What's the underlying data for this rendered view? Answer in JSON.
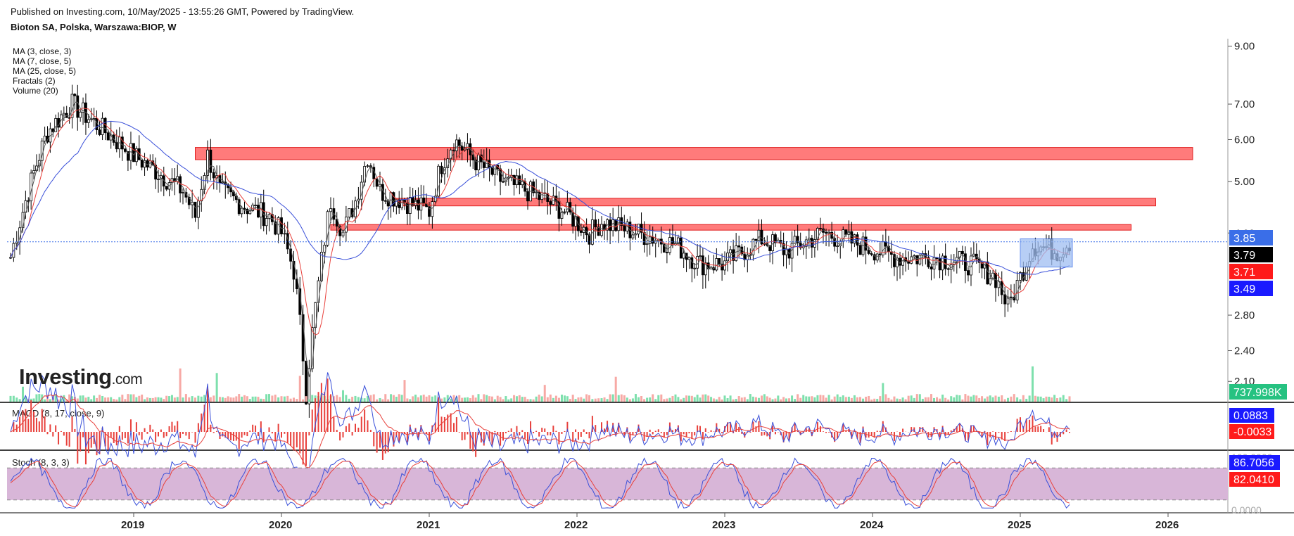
{
  "header": {
    "published": "Published on Investing.com, 10/May/2025 - 13:55:26 GMT, Powered by TradingView.",
    "symbol": "Bioton SA, Polska, Warszawa:BIOP, W"
  },
  "indicators": [
    "MA (3, close, 3)",
    "MA (7, close, 5)",
    "MA (25, close, 5)",
    "Fractals (2)",
    "Volume (20)"
  ],
  "logo": {
    "brand": "Investing",
    "suffix": ".com"
  },
  "colors": {
    "candle": "#000000",
    "ma3": "#555555",
    "ma7": "#e8403b",
    "ma25": "#3a50d9",
    "zone_fill": "#ff7b7b",
    "zone_border": "#e02020",
    "volume_up": "#7ee0ad",
    "volume_down": "#f7a9a5",
    "stoch_band": "#d8b6d8",
    "macd_line": "#3a50d9",
    "signal_line": "#e8403b"
  },
  "chart_data": [
    {
      "type": "candlestick",
      "panel": "price",
      "scale": "log",
      "x_ticks": [
        "2019",
        "2020",
        "2021",
        "2022",
        "2023",
        "2024",
        "2025",
        "2026"
      ],
      "y_ticks": [
        "9.00",
        "7.00",
        "6.00",
        "5.00",
        "4.00",
        "2.80",
        "2.40",
        "2.10"
      ],
      "ylim": [
        1.9,
        9.3
      ],
      "price_path": [
        [
          "2018-03",
          3.6
        ],
        [
          "2018-04",
          4.4
        ],
        [
          "2018-06",
          6.2
        ],
        [
          "2018-08",
          7.0
        ],
        [
          "2018-10",
          6.4
        ],
        [
          "2019-01",
          5.6
        ],
        [
          "2019-03",
          5.2
        ],
        [
          "2019-05",
          4.8
        ],
        [
          "2019-06",
          4.3
        ],
        [
          "2019-07",
          5.6
        ],
        [
          "2019-08",
          4.8
        ],
        [
          "2019-10",
          4.5
        ],
        [
          "2019-12",
          4.3
        ],
        [
          "2020-01",
          4.0
        ],
        [
          "2020-02",
          3.4
        ],
        [
          "2020-03",
          2.0
        ],
        [
          "2020-04",
          3.2
        ],
        [
          "2020-05",
          4.6
        ],
        [
          "2020-06",
          4.0
        ],
        [
          "2020-07",
          4.6
        ],
        [
          "2020-08",
          5.6
        ],
        [
          "2020-09",
          4.8
        ],
        [
          "2020-11",
          4.6
        ],
        [
          "2021-01",
          4.4
        ],
        [
          "2021-02",
          5.4
        ],
        [
          "2021-03",
          6.0
        ],
        [
          "2021-05",
          5.4
        ],
        [
          "2021-07",
          5.0
        ],
        [
          "2021-09",
          4.8
        ],
        [
          "2021-12",
          4.4
        ],
        [
          "2022-02",
          4.0
        ],
        [
          "2022-03",
          4.2
        ],
        [
          "2022-06",
          4.0
        ],
        [
          "2022-09",
          3.8
        ],
        [
          "2022-11",
          3.5
        ],
        [
          "2023-01",
          3.5
        ],
        [
          "2023-04",
          3.9
        ],
        [
          "2023-06",
          3.7
        ],
        [
          "2023-09",
          4.0
        ],
        [
          "2023-12",
          3.8
        ],
        [
          "2024-03",
          3.6
        ],
        [
          "2024-06",
          3.6
        ],
        [
          "2024-09",
          3.5
        ],
        [
          "2024-11",
          3.3
        ],
        [
          "2024-12",
          2.9
        ],
        [
          "2025-01",
          3.3
        ],
        [
          "2025-02",
          3.8
        ],
        [
          "2025-04",
          3.7
        ],
        [
          "2025-05",
          3.85
        ]
      ],
      "resistance_zones": [
        {
          "from": "2019-06",
          "to": "2026-03",
          "low": 5.5,
          "high": 5.8
        },
        {
          "from": "2020-10",
          "to": "2025-12",
          "low": 4.5,
          "high": 4.65
        },
        {
          "from": "2020-05",
          "to": "2025-10",
          "low": 4.05,
          "high": 4.15
        }
      ],
      "price_labels": [
        {
          "label": "3.85",
          "value": 3.85,
          "color": "#3a6ee8"
        },
        {
          "label": "3.79",
          "value": 3.79,
          "color": "#000000"
        },
        {
          "label": "3.71",
          "value": 3.71,
          "color": "#ff1a1a"
        },
        {
          "label": "3.49",
          "value": 3.49,
          "color": "#1a1aff"
        }
      ]
    },
    {
      "type": "bar",
      "panel": "volume",
      "last_label": "737.998K",
      "last_label_color": "#26c281"
    },
    {
      "type": "line",
      "panel": "macd",
      "title": "MACD (8, 17, close, 9)",
      "labels": [
        {
          "label": "0.0883",
          "color": "#1a1aff"
        },
        {
          "label": "-0.0033",
          "color": "#ff1a1a"
        }
      ]
    },
    {
      "type": "line",
      "panel": "stochastic",
      "title": "Stoch (8, 3, 3)",
      "band": [
        20,
        80
      ],
      "ylim": [
        0,
        100
      ],
      "y_ticks": [
        "100.0000",
        "0.0000"
      ],
      "labels": [
        {
          "label": "86.7056",
          "color": "#1a1aff"
        },
        {
          "label": "82.0410",
          "color": "#ff1a1a"
        }
      ]
    }
  ]
}
